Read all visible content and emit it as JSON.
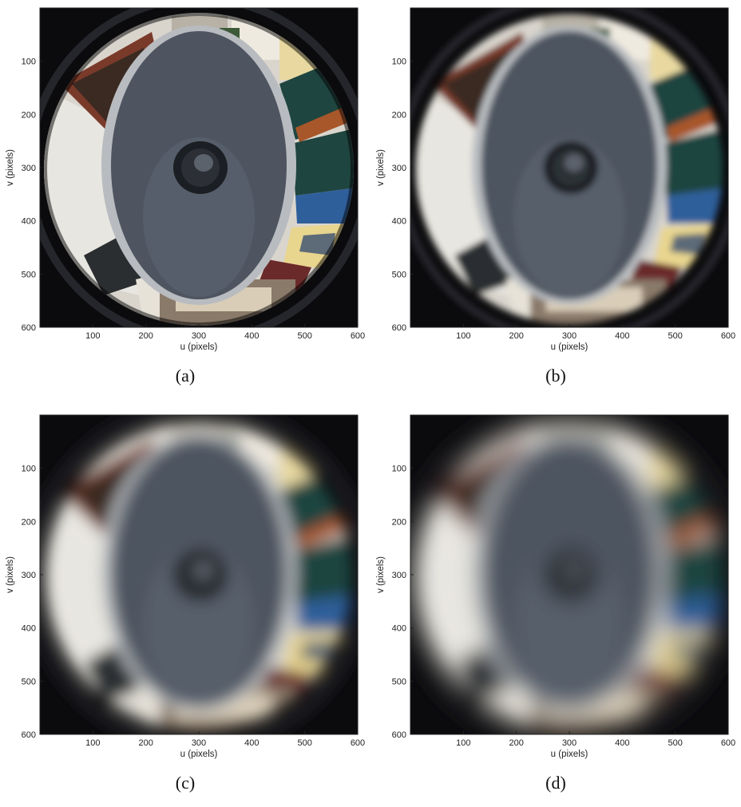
{
  "figure": {
    "panels": [
      {
        "id": "a",
        "caption": "(a)",
        "blur": 0
      },
      {
        "id": "b",
        "caption": "(b)",
        "blur": 4
      },
      {
        "id": "c",
        "caption": "(c)",
        "blur": 9
      },
      {
        "id": "d",
        "caption": "(d)",
        "blur": 13
      }
    ]
  },
  "axes": {
    "xlabel": "u (pixels)",
    "ylabel": "v (pixels)",
    "xticks": [
      "100",
      "200",
      "300",
      "400",
      "500",
      "600"
    ],
    "yticks": [
      "100",
      "200",
      "300",
      "400",
      "500",
      "600"
    ],
    "xlim": [
      0,
      600
    ],
    "ylim": [
      0,
      600
    ]
  },
  "colors": {
    "background_dark": "#0b0b0d",
    "road_gray": "#4e5560",
    "wall_white": "#e8e6e0",
    "brick_red": "#7a3a2a",
    "door_blue": "#2f5f9a",
    "door_teal": "#1f4540",
    "wood_orange": "#a8572a"
  }
}
